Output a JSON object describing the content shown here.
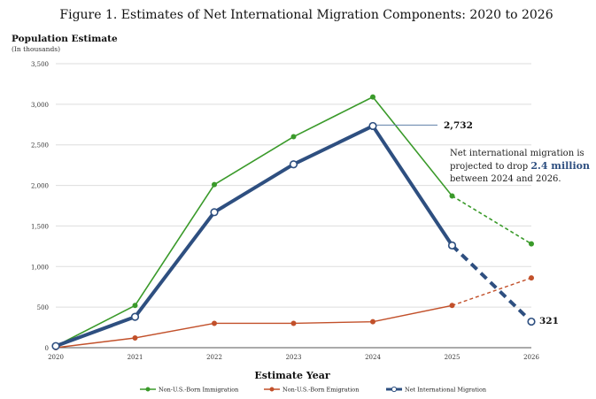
{
  "colors": {
    "immigration": "#3a9a2a",
    "emigration": "#c2502a",
    "net": "#2e4f80",
    "grid": "#dddddd",
    "axis": "#555555",
    "highlight": "#2e4f80"
  },
  "chart_data": {
    "type": "line",
    "title": "Figure 1. Estimates of Net International Migration Components: 2020 to 2026",
    "ylabel": "Population Estimate",
    "ylabel_sub": "(In thousands)",
    "xlabel": "Estimate Year",
    "x": [
      "2020",
      "2021",
      "2022",
      "2023",
      "2024",
      "2025",
      "2026"
    ],
    "ylim": [
      0,
      3500
    ],
    "y_ticks": [
      "0",
      "500",
      "1,000",
      "1,500",
      "2,000",
      "2,500",
      "3,000",
      "3,500"
    ],
    "grid": true,
    "legend_position": "bottom",
    "projection_note": "segment from 2025 to 2026 drawn dashed",
    "series": [
      {
        "name": "Non-U.S.-Born Immigration",
        "values": [
          20,
          520,
          2010,
          2600,
          3090,
          1870,
          1280
        ]
      },
      {
        "name": "Non-U.S.-Born Emigration",
        "values": [
          0,
          120,
          300,
          300,
          320,
          520,
          860
        ]
      },
      {
        "name": "Net International Migration",
        "values": [
          20,
          380,
          1670,
          2260,
          2732,
          1260,
          321
        ]
      }
    ],
    "annotations": {
      "peak_label": "2,732",
      "end_label": "321",
      "note_prefix": "Net international migration is projected to drop",
      "note_highlight": "2.4 million",
      "note_suffix": "between 2024 and 2026."
    }
  }
}
